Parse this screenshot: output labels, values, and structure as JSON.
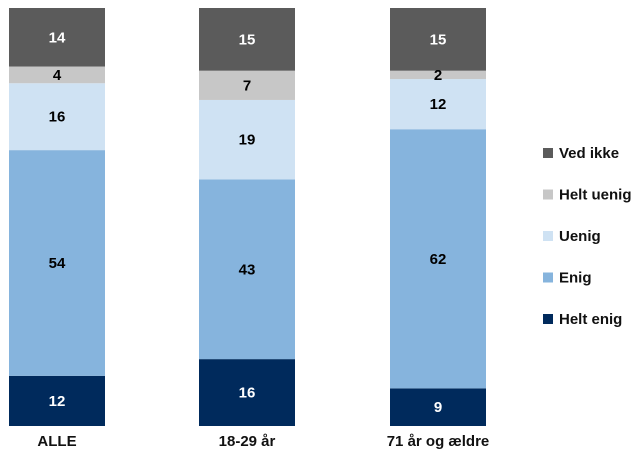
{
  "chart_data": {
    "type": "bar",
    "stacked": true,
    "percent": true,
    "categories": [
      "ALLE",
      "18-29 år",
      "71 år og ældre"
    ],
    "series": [
      {
        "name": "Helt enig",
        "color": "#002a5c",
        "label_color": "#ffffff",
        "values": [
          12,
          16,
          9
        ]
      },
      {
        "name": "Enig",
        "color": "#86b4dd",
        "label_color": "#000000",
        "values": [
          54,
          43,
          62
        ]
      },
      {
        "name": "Uenig",
        "color": "#cfe2f3",
        "label_color": "#000000",
        "values": [
          16,
          19,
          12
        ]
      },
      {
        "name": "Helt uenig",
        "color": "#c7c7c7",
        "label_color": "#000000",
        "values": [
          4,
          7,
          2
        ]
      },
      {
        "name": "Ved ikke",
        "color": "#5b5b5b",
        "label_color": "#ffffff",
        "values": [
          14,
          15,
          15
        ]
      }
    ],
    "legend_order": [
      "Ved ikke",
      "Helt uenig",
      "Uenig",
      "Enig",
      "Helt enig"
    ],
    "legend_position": "right",
    "ylim": [
      0,
      100
    ],
    "grid": false,
    "title": "",
    "xlabel": "",
    "ylabel": ""
  }
}
